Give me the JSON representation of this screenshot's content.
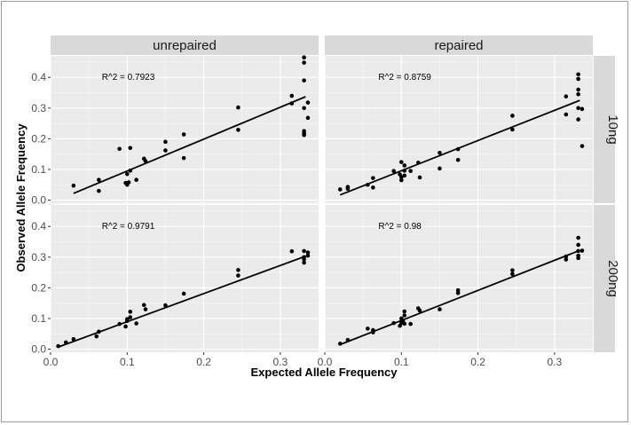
{
  "chart_data": {
    "type": "scatter",
    "xlabel": "Expected Allele Frequency",
    "ylabel": "Observed Allele Frequency",
    "xlim": [
      0.0,
      0.35
    ],
    "ylim": [
      -0.01,
      0.47
    ],
    "x_ticks": [
      "0.0",
      "0.1",
      "0.2",
      "0.3"
    ],
    "x_tick_values": [
      0.0,
      0.1,
      0.2,
      0.3
    ],
    "y_ticks": [
      "0.0",
      "0.1",
      "0.2",
      "0.3",
      "0.4"
    ],
    "y_tick_values": [
      0.0,
      0.1,
      0.2,
      0.3,
      0.4
    ],
    "col_facets": [
      "unrepaired",
      "repaired"
    ],
    "row_facets": [
      "10ng",
      "200ng"
    ],
    "grid": true,
    "legend": "none",
    "panels": [
      {
        "col": "unrepaired",
        "row": "10ng",
        "r2_label": "R^2 = 0.7923",
        "r2_at": [
          0.067,
          0.4
        ],
        "fit": {
          "x": [
            0.03,
            0.333
          ],
          "y": [
            0.022,
            0.337
          ]
        },
        "x": [
          0.03,
          0.063,
          0.063,
          0.09,
          0.098,
          0.1,
          0.1,
          0.102,
          0.104,
          0.104,
          0.112,
          0.122,
          0.124,
          0.15,
          0.15,
          0.174,
          0.174,
          0.245,
          0.245,
          0.315,
          0.315,
          0.331,
          0.331,
          0.331,
          0.331,
          0.331,
          0.331,
          0.331,
          0.336,
          0.336
        ],
        "y": [
          0.047,
          0.066,
          0.03,
          0.167,
          0.056,
          0.05,
          0.085,
          0.058,
          0.17,
          0.096,
          0.066,
          0.135,
          0.127,
          0.19,
          0.162,
          0.214,
          0.137,
          0.302,
          0.229,
          0.34,
          0.315,
          0.465,
          0.448,
          0.39,
          0.3,
          0.225,
          0.218,
          0.212,
          0.318,
          0.268
        ]
      },
      {
        "col": "repaired",
        "row": "10ng",
        "r2_label": "R^2 = 0.8759",
        "r2_at": [
          0.07,
          0.4
        ],
        "fit": {
          "x": [
            0.02,
            0.333
          ],
          "y": [
            0.017,
            0.325
          ]
        },
        "x": [
          0.02,
          0.03,
          0.03,
          0.056,
          0.063,
          0.063,
          0.09,
          0.098,
          0.1,
          0.1,
          0.1,
          0.104,
          0.104,
          0.104,
          0.112,
          0.122,
          0.124,
          0.15,
          0.15,
          0.174,
          0.174,
          0.245,
          0.245,
          0.315,
          0.315,
          0.331,
          0.331,
          0.331,
          0.331,
          0.331,
          0.331,
          0.336,
          0.336
        ],
        "y": [
          0.035,
          0.043,
          0.037,
          0.05,
          0.041,
          0.072,
          0.095,
          0.084,
          0.124,
          0.075,
          0.065,
          0.113,
          0.096,
          0.08,
          0.095,
          0.122,
          0.074,
          0.154,
          0.103,
          0.166,
          0.131,
          0.275,
          0.23,
          0.338,
          0.279,
          0.41,
          0.395,
          0.36,
          0.345,
          0.3,
          0.263,
          0.297,
          0.176
        ]
      },
      {
        "col": "unrepaired",
        "row": "200ng",
        "r2_label": "R^2 = 0.9791",
        "r2_at": [
          0.067,
          0.4
        ],
        "fit": {
          "x": [
            0.01,
            0.333
          ],
          "y": [
            0.007,
            0.303
          ]
        },
        "x": [
          0.01,
          0.02,
          0.03,
          0.06,
          0.063,
          0.09,
          0.098,
          0.1,
          0.1,
          0.104,
          0.104,
          0.112,
          0.122,
          0.124,
          0.15,
          0.174,
          0.245,
          0.245,
          0.315,
          0.331,
          0.331,
          0.331,
          0.331,
          0.336,
          0.336
        ],
        "y": [
          0.01,
          0.022,
          0.033,
          0.042,
          0.057,
          0.082,
          0.074,
          0.092,
          0.098,
          0.122,
          0.104,
          0.084,
          0.144,
          0.13,
          0.143,
          0.181,
          0.258,
          0.24,
          0.319,
          0.32,
          0.3,
          0.293,
          0.282,
          0.315,
          0.305
        ]
      },
      {
        "col": "repaired",
        "row": "200ng",
        "r2_label": "R^2 = 0.98",
        "r2_at": [
          0.07,
          0.4
        ],
        "fit": {
          "x": [
            0.02,
            0.333
          ],
          "y": [
            0.015,
            0.322
          ]
        },
        "x": [
          0.02,
          0.03,
          0.056,
          0.063,
          0.063,
          0.09,
          0.098,
          0.1,
          0.1,
          0.102,
          0.104,
          0.104,
          0.104,
          0.112,
          0.122,
          0.124,
          0.15,
          0.174,
          0.174,
          0.245,
          0.245,
          0.315,
          0.315,
          0.331,
          0.331,
          0.331,
          0.331,
          0.331,
          0.336
        ],
        "y": [
          0.018,
          0.03,
          0.067,
          0.055,
          0.062,
          0.085,
          0.076,
          0.1,
          0.085,
          0.092,
          0.123,
          0.11,
          0.083,
          0.082,
          0.133,
          0.126,
          0.13,
          0.192,
          0.183,
          0.257,
          0.245,
          0.302,
          0.292,
          0.363,
          0.34,
          0.32,
          0.305,
          0.297,
          0.321
        ]
      }
    ]
  }
}
